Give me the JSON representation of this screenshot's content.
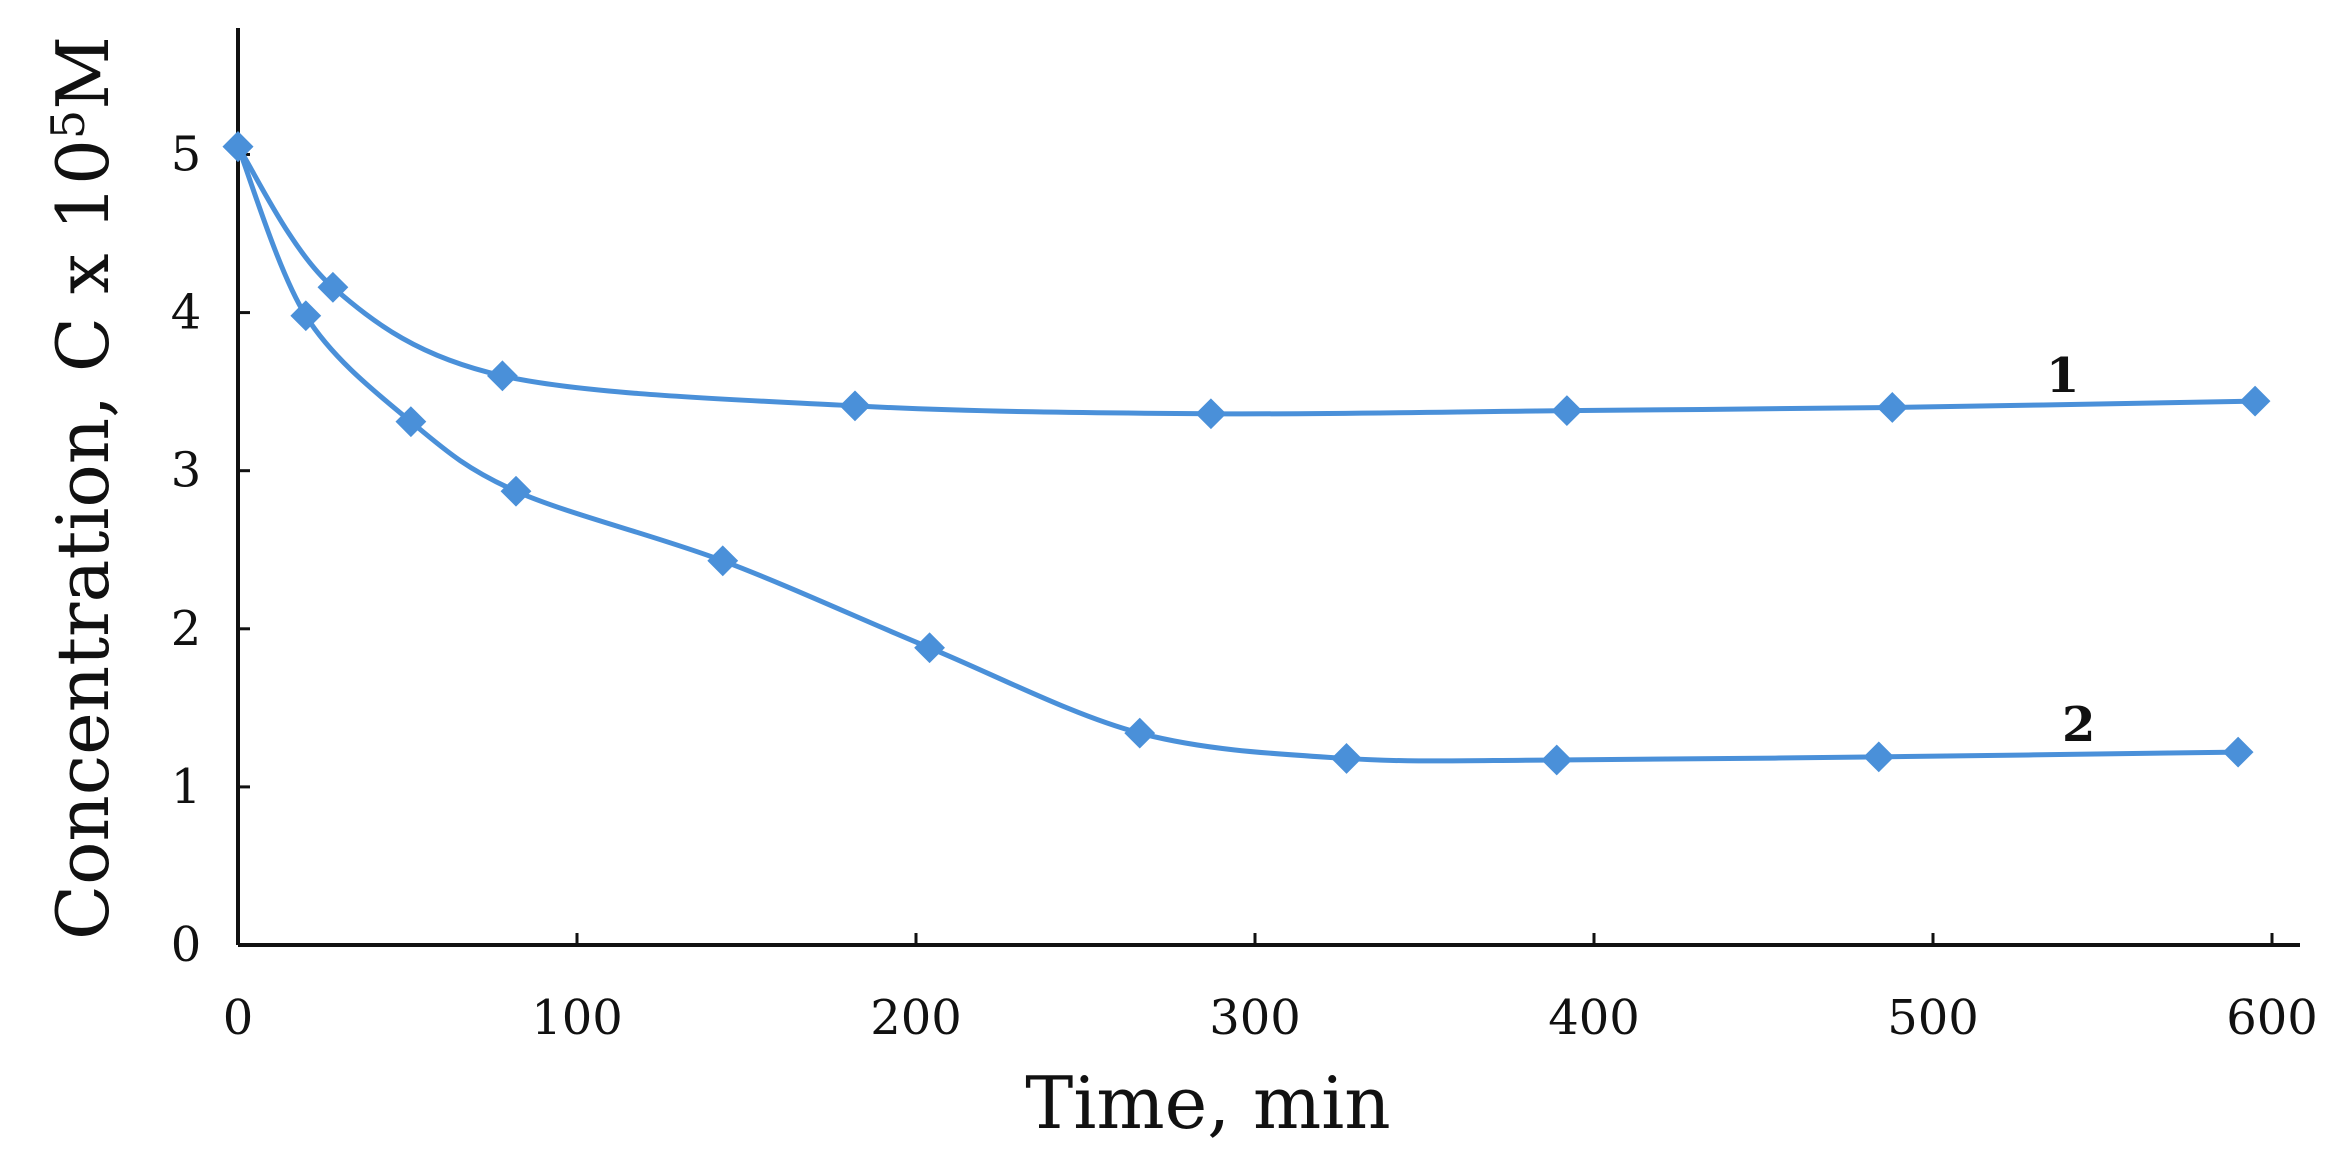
{
  "chart_data": {
    "type": "line",
    "title": "",
    "xlabel": "Time,  min",
    "ylabel": {
      "prefix": "Concentration,  C x 10",
      "superscript": "5",
      "suffix": "M"
    },
    "xlim": [
      0,
      600
    ],
    "ylim": [
      0,
      5.8
    ],
    "x_ticks": [
      0,
      100,
      200,
      300,
      400,
      500,
      600
    ],
    "y_ticks": [
      0,
      1,
      2,
      3,
      4,
      5
    ],
    "grid": false,
    "legend": "none",
    "series": [
      {
        "label": "1",
        "color": "#4a90d9",
        "x": [
          0,
          28,
          78,
          182,
          287,
          392,
          488,
          595
        ],
        "y": [
          5.05,
          4.16,
          3.6,
          3.41,
          3.36,
          3.38,
          3.4,
          3.44
        ]
      },
      {
        "label": "2",
        "color": "#4a90d9",
        "x": [
          0,
          20,
          51,
          82,
          143,
          204,
          266,
          327,
          389,
          484,
          590
        ],
        "y": [
          5.05,
          3.98,
          3.31,
          2.87,
          2.43,
          1.88,
          1.34,
          1.18,
          1.17,
          1.19,
          1.22
        ]
      }
    ]
  }
}
